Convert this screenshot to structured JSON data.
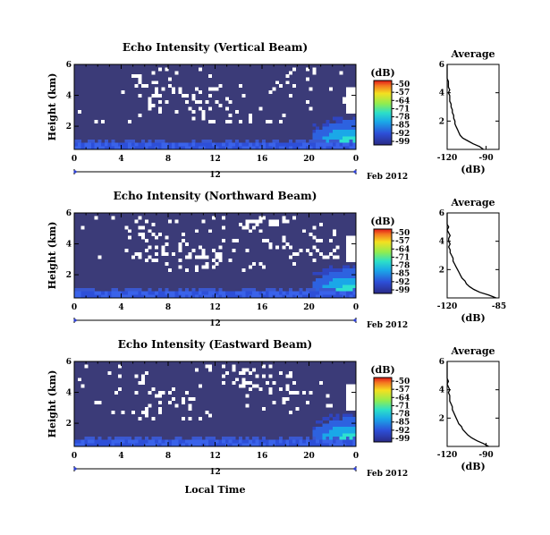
{
  "chart_data": [
    {
      "type": "heatmap",
      "title": "Echo Intensity (Vertical Beam)",
      "xlabel": "",
      "ylabel": "Height (km)",
      "x_ticks": [
        "0",
        "4",
        "8",
        "12",
        "16",
        "20",
        "0"
      ],
      "y_ticks": [
        "2",
        "4",
        "6"
      ],
      "xlim": [
        0,
        24
      ],
      "ylim": [
        0.5,
        6
      ],
      "date_marker": "12",
      "date_label": "Feb 2012",
      "colorbar": {
        "unit": "(dB)",
        "labels": [
          "-50",
          "-57",
          "-64",
          "-71",
          "-78",
          "-85",
          "-92",
          "-99"
        ]
      },
      "white_fraction": 0.34,
      "clutter_weight": 0.35
    },
    {
      "type": "heatmap",
      "title": "Echo Intensity (Northward Beam)",
      "xlabel": "",
      "ylabel": "Height (km)",
      "x_ticks": [
        "0",
        "4",
        "8",
        "12",
        "16",
        "20",
        "0"
      ],
      "y_ticks": [
        "2",
        "4",
        "6"
      ],
      "xlim": [
        0,
        24
      ],
      "ylim": [
        0.5,
        6
      ],
      "date_marker": "12",
      "date_label": "Feb 2012",
      "colorbar": {
        "unit": "(dB)",
        "labels": [
          "-50",
          "-57",
          "-64",
          "-71",
          "-78",
          "-85",
          "-92",
          "-99"
        ]
      },
      "white_fraction": 0.5,
      "clutter_weight": 0.55
    },
    {
      "type": "heatmap",
      "title": "Echo Intensity (Eastward Beam)",
      "xlabel": "Local Time",
      "ylabel": "Height (km)",
      "x_ticks": [
        "0",
        "4",
        "8",
        "12",
        "16",
        "20",
        "0"
      ],
      "y_ticks": [
        "2",
        "4",
        "6"
      ],
      "xlim": [
        0,
        24
      ],
      "ylim": [
        0.5,
        6
      ],
      "date_marker": "12",
      "date_label": "Feb 2012",
      "colorbar": {
        "unit": "(dB)",
        "labels": [
          "-50",
          "-57",
          "-64",
          "-71",
          "-78",
          "-85",
          "-92",
          "-99"
        ]
      },
      "white_fraction": 0.42,
      "clutter_weight": 0.45
    },
    {
      "type": "line",
      "title": "Average",
      "xlabel": "(dB)",
      "x_ticks": [
        "-120",
        "-90"
      ],
      "xlim": [
        -120,
        -80
      ],
      "y_ticks": [
        "2",
        "4",
        "6"
      ],
      "ylim": [
        0,
        6
      ],
      "series": [
        {
          "values": [
            [
              -92,
              0.0
            ],
            [
              -95,
              0.2
            ],
            [
              -100,
              0.4
            ],
            [
              -104,
              0.6
            ],
            [
              -108,
              0.8
            ],
            [
              -110,
              1.0
            ],
            [
              -111,
              1.2
            ],
            [
              -112,
              1.4
            ],
            [
              -113,
              1.6
            ],
            [
              -114,
              1.8
            ],
            [
              -114,
              2.0
            ],
            [
              -115,
              2.2
            ],
            [
              -115,
              2.4
            ],
            [
              -116,
              2.6
            ],
            [
              -116,
              2.8
            ],
            [
              -117,
              3.0
            ],
            [
              -117,
              3.2
            ],
            [
              -118,
              3.4
            ],
            [
              -118,
              3.6
            ],
            [
              -118,
              3.8
            ],
            [
              -119,
              4.0
            ],
            [
              -118,
              4.2
            ],
            [
              -119,
              4.4
            ],
            [
              -119,
              4.6
            ],
            [
              -119,
              4.8
            ],
            [
              -120,
              5.0
            ],
            [
              -120,
              5.2
            ],
            [
              -120,
              5.4
            ],
            [
              -120,
              5.6
            ],
            [
              -120,
              5.8
            ],
            [
              -120,
              6.0
            ]
          ]
        }
      ]
    },
    {
      "type": "line",
      "title": "Average",
      "xlabel": "(dB)",
      "x_ticks": [
        "-120",
        "-85"
      ],
      "xlim": [
        -120,
        -85
      ],
      "y_ticks": [
        "2",
        "4",
        "6"
      ],
      "ylim": [
        0,
        6
      ],
      "series": [
        {
          "values": [
            [
              -87,
              0.0
            ],
            [
              -92,
              0.2
            ],
            [
              -98,
              0.4
            ],
            [
              -102,
              0.6
            ],
            [
              -105,
              0.8
            ],
            [
              -107,
              1.0
            ],
            [
              -108,
              1.2
            ],
            [
              -110,
              1.4
            ],
            [
              -111,
              1.6
            ],
            [
              -112,
              1.8
            ],
            [
              -113,
              2.0
            ],
            [
              -114,
              2.2
            ],
            [
              -115,
              2.4
            ],
            [
              -116,
              2.6
            ],
            [
              -116,
              2.8
            ],
            [
              -117,
              3.0
            ],
            [
              -118,
              3.2
            ],
            [
              -118,
              3.4
            ],
            [
              -119,
              3.6
            ],
            [
              -118,
              3.8
            ],
            [
              -119,
              4.0
            ],
            [
              -119,
              4.2
            ],
            [
              -118,
              4.4
            ],
            [
              -119,
              4.6
            ],
            [
              -120,
              4.8
            ],
            [
              -119,
              5.0
            ],
            [
              -120,
              5.2
            ],
            [
              -120,
              5.4
            ],
            [
              -120,
              5.6
            ],
            [
              -120,
              5.8
            ],
            [
              -120,
              6.0
            ]
          ]
        }
      ]
    },
    {
      "type": "line",
      "title": "Average",
      "xlabel": "(dB)",
      "x_ticks": [
        "-120",
        "-90"
      ],
      "xlim": [
        -120,
        -80
      ],
      "y_ticks": [
        "2",
        "4",
        "6"
      ],
      "ylim": [
        0,
        6
      ],
      "series": [
        {
          "values": [
            [
              -88,
              0.0
            ],
            [
              -92,
              0.2
            ],
            [
              -97,
              0.4
            ],
            [
              -101,
              0.6
            ],
            [
              -104,
              0.8
            ],
            [
              -106,
              1.0
            ],
            [
              -108,
              1.2
            ],
            [
              -109,
              1.4
            ],
            [
              -111,
              1.6
            ],
            [
              -112,
              1.8
            ],
            [
              -113,
              2.0
            ],
            [
              -114,
              2.2
            ],
            [
              -115,
              2.4
            ],
            [
              -116,
              2.6
            ],
            [
              -116,
              2.8
            ],
            [
              -117,
              3.0
            ],
            [
              -118,
              3.2
            ],
            [
              -118,
              3.4
            ],
            [
              -118,
              3.6
            ],
            [
              -119,
              3.8
            ],
            [
              -118,
              4.0
            ],
            [
              -119,
              4.2
            ],
            [
              -120,
              4.4
            ],
            [
              -119,
              4.6
            ],
            [
              -120,
              4.8
            ],
            [
              -120,
              5.0
            ],
            [
              -120,
              5.2
            ],
            [
              -120,
              5.4
            ],
            [
              -120,
              5.6
            ],
            [
              -120,
              5.8
            ],
            [
              -120,
              6.0
            ]
          ]
        }
      ]
    }
  ]
}
